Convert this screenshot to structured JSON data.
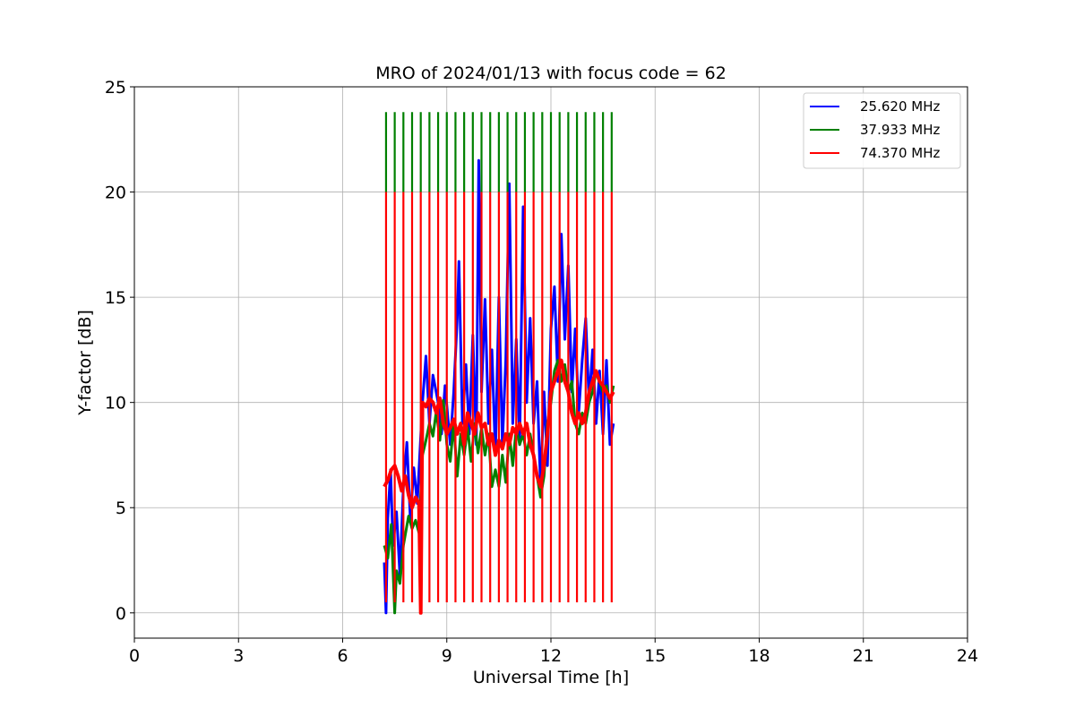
{
  "chart_data": {
    "type": "line",
    "title": "MRO of 2024/01/13 with focus code = 62",
    "xlabel": "Universal Time [h]",
    "ylabel": "Y-factor [dB]",
    "xlim": [
      0,
      24
    ],
    "ylim": [
      -1.2,
      25
    ],
    "xticks": [
      0,
      3,
      6,
      9,
      12,
      15,
      18,
      21,
      24
    ],
    "yticks": [
      0,
      5,
      10,
      15,
      20,
      25
    ],
    "grid": true,
    "legend_position": "top-right",
    "series": [
      {
        "name": "25.620 MHz",
        "color": "#0000ff",
        "points": [
          [
            7.2,
            2.4
          ],
          [
            7.25,
            0
          ],
          [
            7.3,
            4.5
          ],
          [
            7.38,
            6.8
          ],
          [
            7.45,
            3.2
          ],
          [
            7.55,
            4.8
          ],
          [
            7.65,
            1.8
          ],
          [
            7.75,
            6.0
          ],
          [
            7.85,
            8.1
          ],
          [
            7.95,
            4.4
          ],
          [
            8.05,
            6.9
          ],
          [
            8.15,
            5.2
          ],
          [
            8.3,
            10.0
          ],
          [
            8.4,
            12.2
          ],
          [
            8.5,
            9.0
          ],
          [
            8.6,
            11.3
          ],
          [
            8.75,
            10.0
          ],
          [
            8.85,
            8.5
          ],
          [
            8.95,
            10.8
          ],
          [
            9.1,
            8.0
          ],
          [
            9.2,
            10.5
          ],
          [
            9.3,
            14.0
          ],
          [
            9.35,
            16.7
          ],
          [
            9.45,
            9.0
          ],
          [
            9.55,
            11.8
          ],
          [
            9.65,
            8.5
          ],
          [
            9.75,
            13.2
          ],
          [
            9.85,
            8.0
          ],
          [
            9.92,
            21.5
          ],
          [
            10.0,
            10.5
          ],
          [
            10.1,
            14.9
          ],
          [
            10.2,
            9.0
          ],
          [
            10.3,
            12.5
          ],
          [
            10.4,
            7.5
          ],
          [
            10.5,
            15.0
          ],
          [
            10.6,
            8.0
          ],
          [
            10.7,
            12.0
          ],
          [
            10.8,
            20.4
          ],
          [
            10.9,
            9.0
          ],
          [
            11.0,
            13.0
          ],
          [
            11.1,
            8.0
          ],
          [
            11.2,
            19.3
          ],
          [
            11.3,
            10.0
          ],
          [
            11.4,
            14.0
          ],
          [
            11.5,
            9.0
          ],
          [
            11.6,
            11.0
          ],
          [
            11.7,
            6.0
          ],
          [
            11.8,
            10.5
          ],
          [
            11.9,
            7.0
          ],
          [
            12.0,
            13.5
          ],
          [
            12.1,
            15.5
          ],
          [
            12.2,
            11.0
          ],
          [
            12.3,
            18.0
          ],
          [
            12.4,
            13.0
          ],
          [
            12.5,
            16.5
          ],
          [
            12.6,
            10.5
          ],
          [
            12.7,
            13.5
          ],
          [
            12.8,
            9.5
          ],
          [
            12.9,
            12.0
          ],
          [
            13.0,
            14.0
          ],
          [
            13.1,
            10.0
          ],
          [
            13.2,
            12.5
          ],
          [
            13.3,
            9.0
          ],
          [
            13.4,
            11.5
          ],
          [
            13.5,
            8.5
          ],
          [
            13.6,
            12.0
          ],
          [
            13.7,
            8.0
          ],
          [
            13.8,
            9.0
          ]
        ]
      },
      {
        "name": "37.933 MHz",
        "color": "#008000",
        "points": [
          [
            7.2,
            3.2
          ],
          [
            7.3,
            2.6
          ],
          [
            7.4,
            4.2
          ],
          [
            7.5,
            0
          ],
          [
            7.55,
            2.0
          ],
          [
            7.65,
            1.4
          ],
          [
            7.75,
            3.2
          ],
          [
            7.9,
            4.6
          ],
          [
            8.0,
            4.0
          ],
          [
            8.1,
            4.4
          ],
          [
            8.2,
            3.8
          ],
          [
            8.3,
            7.5
          ],
          [
            8.4,
            8.2
          ],
          [
            8.5,
            9.0
          ],
          [
            8.6,
            8.4
          ],
          [
            8.7,
            9.6
          ],
          [
            8.8,
            8.2
          ],
          [
            8.9,
            10.1
          ],
          [
            9.0,
            8.0
          ],
          [
            9.1,
            7.2
          ],
          [
            9.2,
            9.0
          ],
          [
            9.3,
            6.5
          ],
          [
            9.4,
            8.5
          ],
          [
            9.5,
            7.5
          ],
          [
            9.6,
            8.8
          ],
          [
            9.7,
            7.2
          ],
          [
            9.8,
            9.0
          ],
          [
            9.9,
            7.6
          ],
          [
            10.0,
            8.8
          ],
          [
            10.1,
            7.5
          ],
          [
            10.2,
            8.5
          ],
          [
            10.3,
            6.0
          ],
          [
            10.4,
            6.8
          ],
          [
            10.5,
            6.0
          ],
          [
            10.6,
            7.5
          ],
          [
            10.7,
            6.2
          ],
          [
            10.8,
            8.5
          ],
          [
            10.9,
            7.0
          ],
          [
            11.0,
            8.8
          ],
          [
            11.1,
            8.0
          ],
          [
            11.2,
            8.5
          ],
          [
            11.3,
            7.5
          ],
          [
            11.4,
            8.5
          ],
          [
            11.5,
            7.5
          ],
          [
            11.6,
            6.5
          ],
          [
            11.7,
            5.5
          ],
          [
            11.8,
            6.5
          ],
          [
            11.9,
            9.0
          ],
          [
            12.0,
            10.0
          ],
          [
            12.1,
            11.5
          ],
          [
            12.2,
            12.0
          ],
          [
            12.3,
            11.0
          ],
          [
            12.4,
            11.8
          ],
          [
            12.5,
            10.5
          ],
          [
            12.6,
            11.0
          ],
          [
            12.7,
            9.0
          ],
          [
            12.8,
            8.5
          ],
          [
            12.9,
            9.5
          ],
          [
            13.0,
            9.0
          ],
          [
            13.1,
            10.0
          ],
          [
            13.2,
            10.5
          ],
          [
            13.3,
            11.5
          ],
          [
            13.4,
            11.0
          ],
          [
            13.5,
            10.5
          ],
          [
            13.6,
            10.8
          ],
          [
            13.7,
            10.0
          ],
          [
            13.8,
            10.8
          ]
        ],
        "spikes_top": 23.8,
        "spikes_bottom": 20.0
      },
      {
        "name": "74.370 MHz",
        "color": "#ff0000",
        "points": [
          [
            7.2,
            6.0
          ],
          [
            7.3,
            6.3
          ],
          [
            7.4,
            6.8
          ],
          [
            7.5,
            7.0
          ],
          [
            7.6,
            6.5
          ],
          [
            7.7,
            5.8
          ],
          [
            7.8,
            6.5
          ],
          [
            7.9,
            5.6
          ],
          [
            8.0,
            5.0
          ],
          [
            8.1,
            5.5
          ],
          [
            8.2,
            5.2
          ],
          [
            8.25,
            0
          ],
          [
            8.3,
            10.0
          ],
          [
            8.4,
            9.8
          ],
          [
            8.5,
            10.2
          ],
          [
            8.6,
            10.0
          ],
          [
            8.7,
            9.5
          ],
          [
            8.8,
            10.2
          ],
          [
            8.9,
            9.0
          ],
          [
            9.0,
            8.5
          ],
          [
            9.1,
            8.8
          ],
          [
            9.2,
            9.2
          ],
          [
            9.3,
            8.5
          ],
          [
            9.4,
            9.0
          ],
          [
            9.5,
            8.0
          ],
          [
            9.6,
            9.5
          ],
          [
            9.7,
            9.0
          ],
          [
            9.8,
            8.5
          ],
          [
            9.9,
            9.5
          ],
          [
            10.0,
            8.8
          ],
          [
            10.1,
            9.0
          ],
          [
            10.2,
            8.0
          ],
          [
            10.3,
            8.5
          ],
          [
            10.4,
            7.5
          ],
          [
            10.5,
            8.2
          ],
          [
            10.6,
            7.8
          ],
          [
            10.7,
            8.5
          ],
          [
            10.8,
            8.0
          ],
          [
            10.9,
            8.8
          ],
          [
            11.0,
            8.5
          ],
          [
            11.1,
            9.0
          ],
          [
            11.2,
            8.5
          ],
          [
            11.3,
            9.0
          ],
          [
            11.4,
            8.0
          ],
          [
            11.5,
            7.5
          ],
          [
            11.6,
            6.5
          ],
          [
            11.7,
            6.0
          ],
          [
            11.8,
            7.0
          ],
          [
            11.9,
            8.5
          ],
          [
            12.0,
            10.5
          ],
          [
            12.1,
            11.0
          ],
          [
            12.2,
            11.5
          ],
          [
            12.3,
            12.0
          ],
          [
            12.4,
            11.0
          ],
          [
            12.5,
            10.5
          ],
          [
            12.6,
            9.5
          ],
          [
            12.7,
            9.0
          ],
          [
            12.8,
            9.5
          ],
          [
            12.9,
            9.0
          ],
          [
            13.0,
            9.5
          ],
          [
            13.1,
            10.5
          ],
          [
            13.2,
            11.0
          ],
          [
            13.3,
            11.5
          ],
          [
            13.4,
            11.0
          ],
          [
            13.5,
            10.8
          ],
          [
            13.6,
            10.5
          ],
          [
            13.7,
            10.2
          ],
          [
            13.8,
            10.5
          ]
        ],
        "spikes_top": 20.0,
        "spikes_bottom": 0.5
      }
    ],
    "spike_times": [
      7.25,
      7.5,
      7.75,
      8.0,
      8.25,
      8.5,
      8.75,
      9.0,
      9.25,
      9.5,
      9.75,
      10.0,
      10.25,
      10.5,
      10.75,
      11.0,
      11.25,
      11.5,
      11.75,
      12.0,
      12.25,
      12.5,
      12.75,
      13.0,
      13.25,
      13.5,
      13.75
    ]
  }
}
